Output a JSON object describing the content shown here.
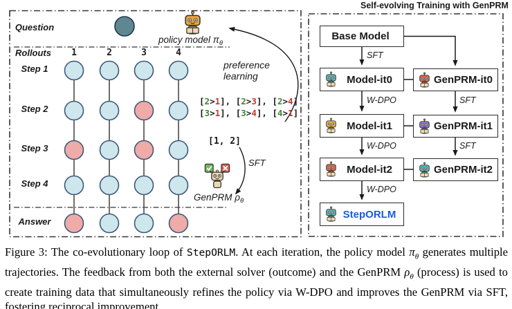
{
  "left_panel": {
    "question_label": "Question",
    "rollouts_label": "Rollouts",
    "policy_model": {
      "prefix": "policy model ",
      "symbol": "π",
      "subscript": "θ"
    },
    "preference_learning_label": "preference learning",
    "preference_pairs": [
      [
        [
          "2",
          "1"
        ],
        [
          "2",
          "3"
        ],
        [
          "2",
          "4"
        ]
      ],
      [
        [
          "3",
          "1"
        ],
        [
          "3",
          "4"
        ],
        [
          "4",
          "1"
        ]
      ]
    ],
    "genprm_feedback": "[1, 2]",
    "sft_arrow_label": "SFT",
    "genprm": {
      "prefix": "GenPRM ",
      "symbol": "ρ",
      "subscript": "θ"
    },
    "trajectory": {
      "columns": [
        "1",
        "2",
        "3",
        "4"
      ],
      "rows": [
        {
          "name": "Step 1",
          "states": [
            "correct",
            "correct",
            "correct",
            "correct"
          ]
        },
        {
          "name": "Step 2",
          "states": [
            "correct",
            "correct",
            "incorrect",
            "correct"
          ]
        },
        {
          "name": "Step 3",
          "states": [
            "incorrect",
            "correct",
            "incorrect",
            "correct"
          ]
        },
        {
          "name": "Step 4",
          "states": [
            "correct",
            "correct",
            "correct",
            "correct"
          ]
        },
        {
          "name": "Answer",
          "states": [
            "incorrect",
            "correct",
            "correct",
            "incorrect"
          ]
        }
      ]
    }
  },
  "right_panel": {
    "title": "Self-evolving Training with GenPRM",
    "nodes": {
      "base": {
        "label": "Base Model"
      },
      "model_it0": {
        "label": "Model-it0"
      },
      "genprm_it0": {
        "label": "GenPRM-it0"
      },
      "model_it1": {
        "label": "Model-it1"
      },
      "genprm_it1": {
        "label": "GenPRM-it1"
      },
      "model_it2": {
        "label": "Model-it2"
      },
      "genprm_it2": {
        "label": "GenPRM-it2"
      },
      "steporlm": {
        "label": "StepORLM"
      }
    },
    "edges": {
      "base_to_model0": "SFT",
      "model0_to_model1": "W-DPO",
      "model1_to_model2": "W-DPO",
      "model2_to_steporlm": "W-DPO",
      "genprm0_to_genprm1": "SFT",
      "genprm1_to_genprm2": "SFT"
    }
  },
  "caption": {
    "segments": [
      {
        "s": "t",
        "t": "Figure 3: The co-evolutionary loop of "
      },
      {
        "s": "mono",
        "t": "StepORLM"
      },
      {
        "s": "t",
        "t": ". At each iteration, the policy model "
      },
      {
        "s": "m",
        "t": "π"
      },
      {
        "s": "ms",
        "t": "θ"
      },
      {
        "s": "t",
        "t": " generates multiple trajectories. The feedback from both the external solver (outcome) and the GenPRM "
      },
      {
        "s": "m",
        "t": "ρ"
      },
      {
        "s": "ms",
        "t": "θ"
      },
      {
        "s": "t",
        "t": " (process) is used to create training data that simultaneously refines the policy via W-DPO and improves the GenPRM via SFT, fostering reciprocal improvement."
      }
    ]
  },
  "colors": {
    "circle_correct": "#cee7ed",
    "circle_incorrect": "#efaba8",
    "circle_stroke": "#3c5878",
    "trajectory_line": "#4a4a4a",
    "question_circle_fill": "#5e8791",
    "question_circle_stroke": "#24364e",
    "preference_win": "#3f8633",
    "preference_lose": "#c23b2e",
    "steporlm_text": "#1d5bd8",
    "sign_check": "#74b55a",
    "sign_cross": "#d95f51",
    "robots": {
      "policy": "#e8a33d",
      "model_it0": "#5cb8b2",
      "genprm_it0": "#dd6b4d",
      "model_it1": "#e6b54c",
      "genprm_it1": "#9179c2",
      "model_it2": "#dd6b4d",
      "genprm_it2": "#5cb8b2",
      "steporlm": "#5cb8b2",
      "genprm_rho": "#ecd9ae"
    }
  }
}
